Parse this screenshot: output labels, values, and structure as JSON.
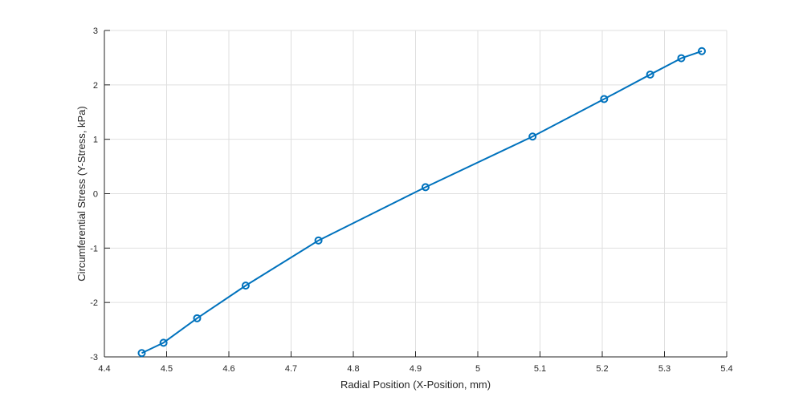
{
  "chart_data": {
    "type": "line",
    "title": "",
    "xlabel": "Radial Position (X-Position, mm)",
    "ylabel": "Circumferential Stress (Y-Stress, kPa)",
    "xlim": [
      4.4,
      5.4
    ],
    "ylim": [
      -3,
      3
    ],
    "xticks": [
      "4.4",
      "4.5",
      "4.6",
      "4.7",
      "4.8",
      "4.9",
      "5",
      "5.1",
      "5.2",
      "5.3",
      "5.4"
    ],
    "yticks": [
      "-3",
      "-2",
      "-1",
      "0",
      "1",
      "2",
      "3"
    ],
    "grid": true,
    "legend": "none",
    "marker": "circle",
    "color": "#0072BD",
    "series": [
      {
        "x": [
          4.46,
          4.495,
          4.549,
          4.627,
          4.744,
          4.916,
          5.088,
          5.203,
          5.277,
          5.327,
          5.36
        ],
        "y": [
          -2.93,
          -2.74,
          -2.29,
          -1.69,
          -0.86,
          0.12,
          1.05,
          1.74,
          2.19,
          2.49,
          2.62
        ]
      }
    ]
  }
}
